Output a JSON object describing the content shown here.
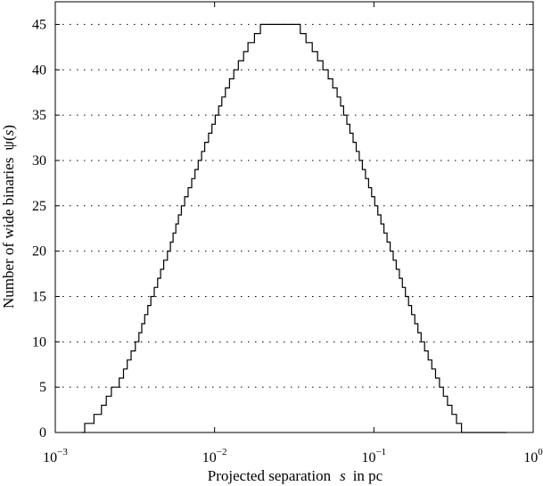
{
  "chart_data": {
    "type": "line",
    "line_style": "step",
    "xlabel": {
      "prefix": "Projected separation",
      "variable": "s",
      "suffix": "in pc"
    },
    "ylabel": {
      "prefix": "Number of wide binaries",
      "function": "ψ(",
      "variable": "s",
      "suffix": ")"
    },
    "x_scale": "log",
    "xlim": [
      0.001,
      1
    ],
    "ylim": [
      0,
      47.5
    ],
    "x_ticks": [
      {
        "value": 0.001,
        "base": "10",
        "exp": "−3"
      },
      {
        "value": 0.01,
        "base": "10",
        "exp": "−2"
      },
      {
        "value": 0.1,
        "base": "10",
        "exp": "−1"
      },
      {
        "value": 1,
        "base": "10",
        "exp": "0"
      }
    ],
    "y_ticks": [
      0,
      5,
      10,
      15,
      20,
      25,
      30,
      35,
      40,
      45
    ],
    "grid": "horizontal dotted",
    "line_color": "#000000",
    "series": [
      {
        "x": [
          0.00146,
          0.00153,
          0.00175,
          0.00195,
          0.00209,
          0.00225,
          0.00252,
          0.00268,
          0.00283,
          0.00299,
          0.00318,
          0.00335,
          0.00349,
          0.00364,
          0.00381,
          0.00398,
          0.00418,
          0.00439,
          0.00458,
          0.00479,
          0.00506,
          0.00528,
          0.00549,
          0.00571,
          0.00593,
          0.00619,
          0.00649,
          0.00682,
          0.00718,
          0.00753,
          0.00789,
          0.00829,
          0.00867,
          0.00917,
          0.00962,
          0.0101,
          0.0106,
          0.0111,
          0.0117,
          0.0124,
          0.0132,
          0.0141,
          0.0152,
          0.0162,
          0.0178,
          0.0194,
          0.0223,
          0.0245,
          0.0345,
          0.0375,
          0.041,
          0.0443,
          0.0479,
          0.0517,
          0.0552,
          0.0588,
          0.0618,
          0.0646,
          0.0676,
          0.0707,
          0.074,
          0.0774,
          0.0809,
          0.0846,
          0.0885,
          0.0926,
          0.0968,
          0.1012,
          0.1058,
          0.1107,
          0.1157,
          0.121,
          0.1265,
          0.1322,
          0.1382,
          0.1445,
          0.151,
          0.1578,
          0.165,
          0.1725,
          0.1805,
          0.189,
          0.198,
          0.208,
          0.219,
          0.231,
          0.244,
          0.258,
          0.273,
          0.29,
          0.309,
          0.33,
          0.355,
          0.385,
          0.42,
          0.47,
          0.55,
          0.65,
          0.68
        ],
        "y": [
          0,
          1,
          2,
          3,
          4,
          5,
          6,
          7,
          8,
          9,
          10,
          11,
          12,
          13,
          14,
          15,
          16,
          17,
          18,
          19,
          20,
          21,
          22,
          23,
          24,
          25,
          26,
          27,
          28,
          29,
          30,
          31,
          32,
          33,
          34,
          35,
          36,
          37,
          38,
          39,
          40,
          41,
          42,
          43,
          44,
          45,
          45,
          45,
          44,
          43,
          42,
          41,
          40,
          39,
          38,
          37,
          36,
          35,
          34,
          33,
          32,
          31,
          30,
          29,
          28,
          27,
          26,
          25,
          24,
          23,
          22,
          21,
          20,
          19,
          18,
          17,
          16,
          15,
          14,
          13,
          12,
          11,
          10,
          9,
          8,
          7,
          6,
          5,
          4,
          3,
          2,
          1,
          0,
          0,
          0,
          0,
          0,
          0,
          0
        ]
      }
    ]
  }
}
